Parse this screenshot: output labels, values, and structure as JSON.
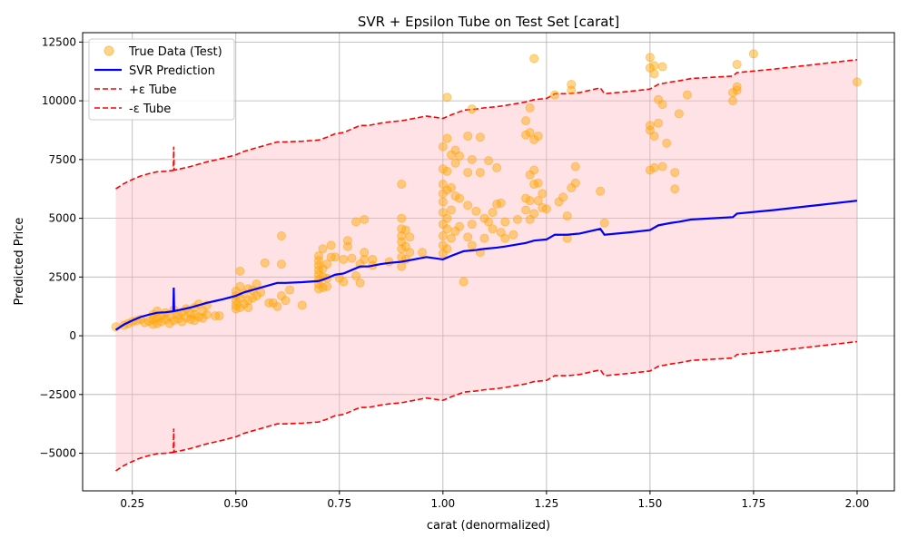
{
  "chart_data": {
    "type": "scatter",
    "title": "SVR + Epsilon Tube on Test Set [carat]",
    "xlabel": "carat (denormalized)",
    "ylabel": "Predicted Price",
    "xlim": [
      0.13,
      2.09
    ],
    "ylim": [
      -6600,
      12900
    ],
    "x_ticks": [
      0.25,
      0.5,
      0.75,
      1.0,
      1.25,
      1.5,
      1.75,
      2.0
    ],
    "x_tick_labels": [
      "0.25",
      "0.50",
      "0.75",
      "1.00",
      "1.25",
      "1.50",
      "1.75",
      "2.00"
    ],
    "y_ticks": [
      -5000,
      -2500,
      0,
      2500,
      5000,
      7500,
      10000,
      12500
    ],
    "y_tick_labels": [
      "−5000",
      "−2500",
      "0",
      "2500",
      "5000",
      "7500",
      "10000",
      "12500"
    ],
    "grid": true,
    "legend_position": "top-left",
    "epsilon": 6000,
    "colors": {
      "scatter": "#ffa500",
      "prediction": "#0000ff",
      "tube": "#ff0000",
      "tube_fill": "#ffb6c1"
    },
    "series": [
      {
        "name": "True Data (Test)",
        "kind": "scatter",
        "points": [
          [
            0.21,
            380
          ],
          [
            0.23,
            450
          ],
          [
            0.24,
            520
          ],
          [
            0.25,
            600
          ],
          [
            0.26,
            640
          ],
          [
            0.27,
            700
          ],
          [
            0.28,
            560
          ],
          [
            0.29,
            620
          ],
          [
            0.3,
            480
          ],
          [
            0.3,
            700
          ],
          [
            0.3,
            900
          ],
          [
            0.31,
            520
          ],
          [
            0.31,
            760
          ],
          [
            0.31,
            1050
          ],
          [
            0.32,
            600
          ],
          [
            0.32,
            850
          ],
          [
            0.33,
            700
          ],
          [
            0.33,
            980
          ],
          [
            0.34,
            520
          ],
          [
            0.34,
            820
          ],
          [
            0.35,
            650
          ],
          [
            0.35,
            1100
          ],
          [
            0.36,
            720
          ],
          [
            0.36,
            900
          ],
          [
            0.37,
            600
          ],
          [
            0.37,
            1000
          ],
          [
            0.38,
            780
          ],
          [
            0.38,
            1150
          ],
          [
            0.39,
            700
          ],
          [
            0.39,
            950
          ],
          [
            0.4,
            650
          ],
          [
            0.4,
            900
          ],
          [
            0.4,
            1200
          ],
          [
            0.41,
            800
          ],
          [
            0.41,
            1350
          ],
          [
            0.42,
            750
          ],
          [
            0.42,
            1050
          ],
          [
            0.43,
            900
          ],
          [
            0.43,
            1300
          ],
          [
            0.45,
            850
          ],
          [
            0.46,
            850
          ],
          [
            0.5,
            1150
          ],
          [
            0.5,
            1300
          ],
          [
            0.5,
            1500
          ],
          [
            0.5,
            1700
          ],
          [
            0.5,
            1900
          ],
          [
            0.51,
            1200
          ],
          [
            0.51,
            1600
          ],
          [
            0.51,
            2100
          ],
          [
            0.51,
            2750
          ],
          [
            0.52,
            1350
          ],
          [
            0.52,
            1800
          ],
          [
            0.53,
            1200
          ],
          [
            0.53,
            1500
          ],
          [
            0.53,
            2000
          ],
          [
            0.54,
            1600
          ],
          [
            0.54,
            1950
          ],
          [
            0.55,
            1700
          ],
          [
            0.55,
            2200
          ],
          [
            0.56,
            1850
          ],
          [
            0.57,
            3100
          ],
          [
            0.58,
            1400
          ],
          [
            0.59,
            1400
          ],
          [
            0.6,
            1250
          ],
          [
            0.61,
            1700
          ],
          [
            0.61,
            3050
          ],
          [
            0.61,
            4250
          ],
          [
            0.62,
            1500
          ],
          [
            0.63,
            1950
          ],
          [
            0.66,
            1300
          ],
          [
            0.7,
            2000
          ],
          [
            0.7,
            2200
          ],
          [
            0.7,
            2400
          ],
          [
            0.7,
            2600
          ],
          [
            0.7,
            2800
          ],
          [
            0.7,
            3000
          ],
          [
            0.7,
            3200
          ],
          [
            0.7,
            3400
          ],
          [
            0.71,
            2050
          ],
          [
            0.71,
            2500
          ],
          [
            0.71,
            2850
          ],
          [
            0.71,
            3700
          ],
          [
            0.72,
            2100
          ],
          [
            0.72,
            2450
          ],
          [
            0.72,
            3050
          ],
          [
            0.73,
            3350
          ],
          [
            0.73,
            3850
          ],
          [
            0.74,
            3350
          ],
          [
            0.75,
            2450
          ],
          [
            0.76,
            2300
          ],
          [
            0.76,
            3250
          ],
          [
            0.77,
            3800
          ],
          [
            0.77,
            4050
          ],
          [
            0.78,
            3300
          ],
          [
            0.79,
            2550
          ],
          [
            0.79,
            4850
          ],
          [
            0.8,
            2250
          ],
          [
            0.8,
            3050
          ],
          [
            0.81,
            3250
          ],
          [
            0.81,
            3550
          ],
          [
            0.81,
            4950
          ],
          [
            0.83,
            3000
          ],
          [
            0.83,
            3250
          ],
          [
            0.87,
            3150
          ],
          [
            0.9,
            2950
          ],
          [
            0.9,
            3350
          ],
          [
            0.9,
            3700
          ],
          [
            0.9,
            4000
          ],
          [
            0.9,
            4250
          ],
          [
            0.9,
            4550
          ],
          [
            0.9,
            5000
          ],
          [
            0.9,
            6450
          ],
          [
            0.91,
            3250
          ],
          [
            0.91,
            3800
          ],
          [
            0.91,
            4500
          ],
          [
            0.92,
            3550
          ],
          [
            0.92,
            4200
          ],
          [
            0.95,
            3550
          ],
          [
            1.0,
            3500
          ],
          [
            1.0,
            3850
          ],
          [
            1.0,
            4250
          ],
          [
            1.0,
            4750
          ],
          [
            1.0,
            5250
          ],
          [
            1.0,
            5700
          ],
          [
            1.0,
            6050
          ],
          [
            1.0,
            6450
          ],
          [
            1.0,
            7100
          ],
          [
            1.0,
            8050
          ],
          [
            1.01,
            3700
          ],
          [
            1.01,
            4550
          ],
          [
            1.01,
            5000
          ],
          [
            1.01,
            6200
          ],
          [
            1.01,
            7000
          ],
          [
            1.01,
            8400
          ],
          [
            1.01,
            10150
          ],
          [
            1.02,
            4150
          ],
          [
            1.02,
            5350
          ],
          [
            1.02,
            6300
          ],
          [
            1.02,
            7700
          ],
          [
            1.03,
            4450
          ],
          [
            1.03,
            5950
          ],
          [
            1.03,
            7350
          ],
          [
            1.03,
            7900
          ],
          [
            1.04,
            4650
          ],
          [
            1.04,
            5850
          ],
          [
            1.04,
            7650
          ],
          [
            1.05,
            2300
          ],
          [
            1.06,
            4200
          ],
          [
            1.06,
            5550
          ],
          [
            1.06,
            6950
          ],
          [
            1.06,
            8500
          ],
          [
            1.07,
            3850
          ],
          [
            1.07,
            4750
          ],
          [
            1.07,
            7500
          ],
          [
            1.07,
            9650
          ],
          [
            1.08,
            5300
          ],
          [
            1.09,
            3550
          ],
          [
            1.09,
            6950
          ],
          [
            1.09,
            8450
          ],
          [
            1.1,
            4150
          ],
          [
            1.1,
            5000
          ],
          [
            1.11,
            4850
          ],
          [
            1.11,
            7450
          ],
          [
            1.12,
            4550
          ],
          [
            1.12,
            5250
          ],
          [
            1.13,
            5600
          ],
          [
            1.13,
            7150
          ],
          [
            1.14,
            4400
          ],
          [
            1.14,
            5650
          ],
          [
            1.15,
            4150
          ],
          [
            1.15,
            4850
          ],
          [
            1.17,
            4300
          ],
          [
            1.18,
            4950
          ],
          [
            1.2,
            5350
          ],
          [
            1.2,
            5850
          ],
          [
            1.2,
            8550
          ],
          [
            1.2,
            9150
          ],
          [
            1.21,
            4950
          ],
          [
            1.21,
            5750
          ],
          [
            1.21,
            6850
          ],
          [
            1.21,
            8650
          ],
          [
            1.21,
            9700
          ],
          [
            1.22,
            5200
          ],
          [
            1.22,
            6450
          ],
          [
            1.22,
            7050
          ],
          [
            1.22,
            8350
          ],
          [
            1.22,
            11800
          ],
          [
            1.23,
            5750
          ],
          [
            1.23,
            6500
          ],
          [
            1.23,
            8500
          ],
          [
            1.24,
            5450
          ],
          [
            1.24,
            6050
          ],
          [
            1.25,
            5400
          ],
          [
            1.27,
            10250
          ],
          [
            1.28,
            5700
          ],
          [
            1.29,
            5900
          ],
          [
            1.3,
            4150
          ],
          [
            1.3,
            5100
          ],
          [
            1.31,
            6300
          ],
          [
            1.31,
            10450
          ],
          [
            1.31,
            10700
          ],
          [
            1.32,
            6500
          ],
          [
            1.32,
            7200
          ],
          [
            1.38,
            6150
          ],
          [
            1.39,
            4800
          ],
          [
            1.5,
            7050
          ],
          [
            1.5,
            8750
          ],
          [
            1.5,
            8950
          ],
          [
            1.5,
            11400
          ],
          [
            1.5,
            11850
          ],
          [
            1.51,
            7150
          ],
          [
            1.51,
            8500
          ],
          [
            1.51,
            11150
          ],
          [
            1.51,
            11500
          ],
          [
            1.52,
            9050
          ],
          [
            1.52,
            10050
          ],
          [
            1.53,
            7200
          ],
          [
            1.53,
            9850
          ],
          [
            1.53,
            11450
          ],
          [
            1.54,
            8200
          ],
          [
            1.56,
            6250
          ],
          [
            1.56,
            6950
          ],
          [
            1.57,
            9450
          ],
          [
            1.59,
            10250
          ],
          [
            1.7,
            10000
          ],
          [
            1.7,
            10350
          ],
          [
            1.71,
            10450
          ],
          [
            1.71,
            10600
          ],
          [
            1.71,
            11550
          ],
          [
            1.75,
            12000
          ],
          [
            2.0,
            10800
          ]
        ]
      },
      {
        "name": "SVR Prediction",
        "kind": "line",
        "points": [
          [
            0.21,
            250
          ],
          [
            0.23,
            480
          ],
          [
            0.25,
            650
          ],
          [
            0.27,
            800
          ],
          [
            0.29,
            900
          ],
          [
            0.31,
            980
          ],
          [
            0.33,
            1000
          ],
          [
            0.349,
            1040
          ],
          [
            0.35,
            2050
          ],
          [
            0.351,
            1050
          ],
          [
            0.37,
            1120
          ],
          [
            0.39,
            1200
          ],
          [
            0.41,
            1300
          ],
          [
            0.43,
            1400
          ],
          [
            0.45,
            1480
          ],
          [
            0.47,
            1560
          ],
          [
            0.5,
            1700
          ],
          [
            0.52,
            1850
          ],
          [
            0.55,
            2000
          ],
          [
            0.58,
            2150
          ],
          [
            0.6,
            2250
          ],
          [
            0.62,
            2250
          ],
          [
            0.66,
            2280
          ],
          [
            0.7,
            2330
          ],
          [
            0.72,
            2450
          ],
          [
            0.74,
            2600
          ],
          [
            0.76,
            2650
          ],
          [
            0.78,
            2800
          ],
          [
            0.8,
            2950
          ],
          [
            0.82,
            2950
          ],
          [
            0.85,
            3050
          ],
          [
            0.87,
            3100
          ],
          [
            0.9,
            3150
          ],
          [
            0.93,
            3250
          ],
          [
            0.96,
            3350
          ],
          [
            1.0,
            3250
          ],
          [
            1.02,
            3400
          ],
          [
            1.05,
            3600
          ],
          [
            1.08,
            3650
          ],
          [
            1.1,
            3700
          ],
          [
            1.13,
            3750
          ],
          [
            1.15,
            3800
          ],
          [
            1.2,
            3950
          ],
          [
            1.22,
            4050
          ],
          [
            1.25,
            4100
          ],
          [
            1.27,
            4300
          ],
          [
            1.3,
            4300
          ],
          [
            1.33,
            4350
          ],
          [
            1.38,
            4550
          ],
          [
            1.39,
            4300
          ],
          [
            1.45,
            4400
          ],
          [
            1.5,
            4500
          ],
          [
            1.52,
            4700
          ],
          [
            1.55,
            4800
          ],
          [
            1.57,
            4850
          ],
          [
            1.6,
            4950
          ],
          [
            1.65,
            5000
          ],
          [
            1.7,
            5050
          ],
          [
            1.71,
            5200
          ],
          [
            1.8,
            5350
          ],
          [
            1.9,
            5550
          ],
          [
            2.0,
            5750
          ]
        ]
      },
      {
        "name": "+ε Tube",
        "kind": "line",
        "style": "dashed",
        "offset": 6000
      },
      {
        "name": "-ε Tube",
        "kind": "line",
        "style": "dashed",
        "offset": -6000
      }
    ]
  }
}
